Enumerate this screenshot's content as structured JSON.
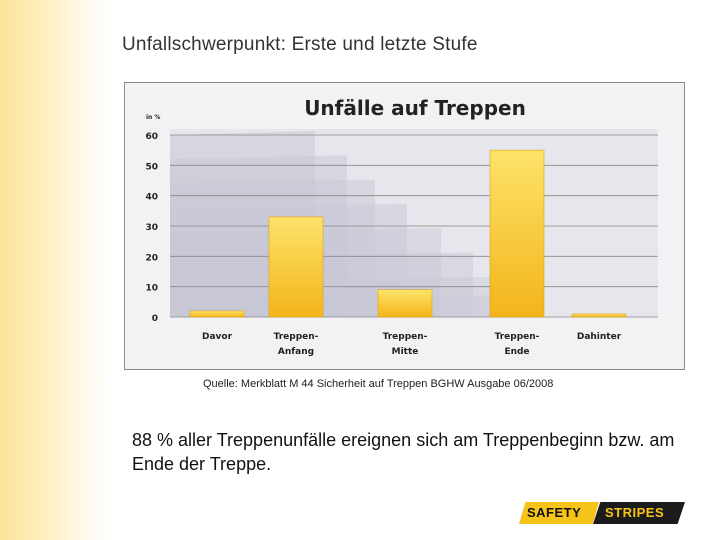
{
  "slide": {
    "title": "Unfallschwerpunkt: Erste und letzte Stufe",
    "source": "Quelle: Merkblatt M 44 Sicherheit auf Treppen BGHW Ausgabe 06/2008",
    "statement": "88 % aller Treppenunfälle ereignen sich am Treppenbeginn bzw. am Ende der Treppe."
  },
  "brand": {
    "part1": "SAFETY",
    "part2": "STRIPES"
  },
  "colors": {
    "bar_top": "#fde36a",
    "bar_bottom": "#f3b41a",
    "stairs": "#c8c8d6",
    "grid": "#888888",
    "plot_bg": "#e6e6ec"
  },
  "chart_data": {
    "type": "bar",
    "title": "Unfälle auf Treppen",
    "ylabel": "in %",
    "categories": [
      [
        "Davor"
      ],
      [
        "Treppen-",
        "Anfang"
      ],
      [
        "Treppen-",
        "Mitte"
      ],
      [
        "Treppen-",
        "Ende"
      ],
      [
        "Dahinter"
      ]
    ],
    "values": [
      2,
      33,
      9,
      55,
      1
    ],
    "ylim": [
      0,
      60
    ],
    "yticks": [
      0,
      10,
      20,
      30,
      40,
      50,
      60
    ],
    "grid": true
  }
}
